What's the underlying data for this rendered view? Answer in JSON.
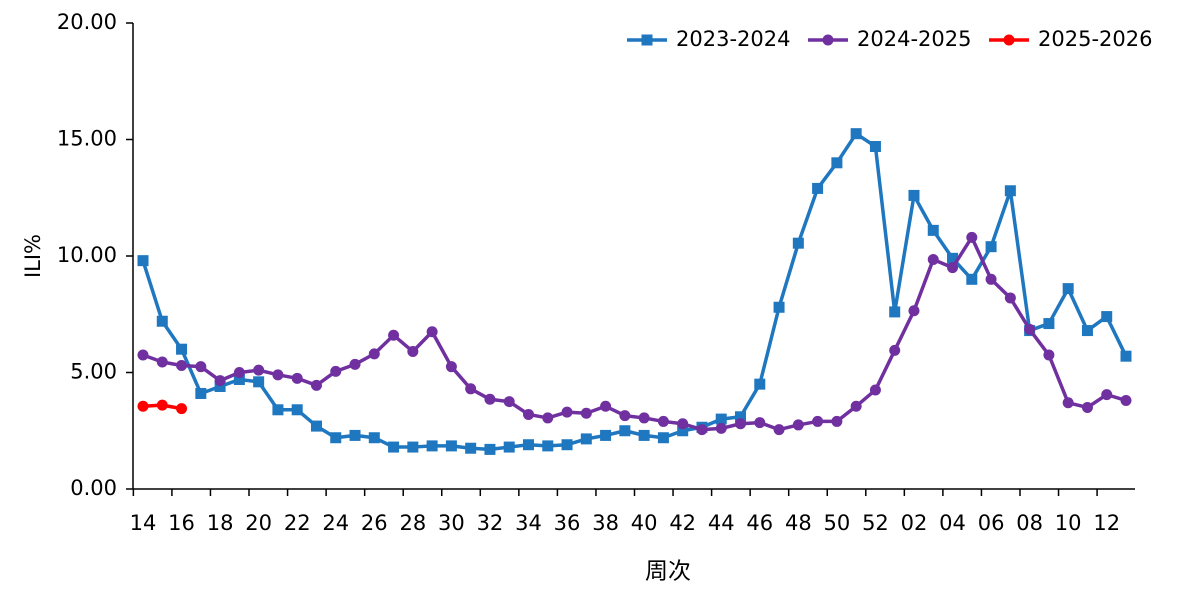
{
  "chart_data": {
    "type": "line",
    "x_label": "周次",
    "y_label": "ILI%",
    "categories": [
      "14",
      null,
      "16",
      null,
      "18",
      null,
      "20",
      null,
      "22",
      null,
      "24",
      null,
      "26",
      null,
      "28",
      null,
      "30",
      null,
      "32",
      null,
      "34",
      null,
      "36",
      null,
      "38",
      null,
      "40",
      null,
      "42",
      null,
      "44",
      null,
      "46",
      null,
      "48",
      null,
      "50",
      null,
      "52",
      null,
      "02",
      null,
      "04",
      null,
      "06",
      null,
      "08",
      null,
      "10",
      null,
      "12",
      null
    ],
    "series": [
      {
        "name": "2023-2024",
        "color": "#1f77c0",
        "marker": "square",
        "values": [
          9.8,
          7.2,
          6.0,
          4.1,
          4.4,
          4.7,
          4.6,
          3.4,
          3.4,
          2.7,
          2.2,
          2.3,
          2.2,
          1.8,
          1.8,
          1.85,
          1.85,
          1.75,
          1.7,
          1.8,
          1.9,
          1.85,
          1.9,
          2.15,
          2.3,
          2.5,
          2.3,
          2.2,
          2.5,
          2.65,
          3.0,
          3.1,
          4.5,
          7.8,
          10.55,
          12.9,
          14.0,
          15.25,
          14.7,
          7.6,
          12.6,
          11.1,
          9.9,
          9.0,
          10.4,
          12.8,
          6.8,
          7.1,
          8.6,
          6.8,
          7.4,
          5.7
        ]
      },
      {
        "name": "2024-2025",
        "color": "#7030a0",
        "marker": "circle",
        "values": [
          5.75,
          5.45,
          5.3,
          5.25,
          4.65,
          5.0,
          5.1,
          4.9,
          4.75,
          4.45,
          5.05,
          5.35,
          5.8,
          6.6,
          5.9,
          6.75,
          5.25,
          4.3,
          3.85,
          3.75,
          3.2,
          3.05,
          3.3,
          3.25,
          3.55,
          3.15,
          3.05,
          2.9,
          2.8,
          2.55,
          2.6,
          2.8,
          2.85,
          2.55,
          2.75,
          2.9,
          2.9,
          3.55,
          4.25,
          5.95,
          7.65,
          9.85,
          9.5,
          10.8,
          9.0,
          8.2,
          6.85,
          5.75,
          3.7,
          3.5,
          4.05,
          3.8
        ]
      },
      {
        "name": "2025-2026",
        "color": "#ff0000",
        "marker": "circle",
        "values": [
          3.55,
          3.6,
          3.45,
          null,
          null,
          null,
          null,
          null,
          null,
          null,
          null,
          null,
          null,
          null,
          null,
          null,
          null,
          null,
          null,
          null,
          null,
          null,
          null,
          null,
          null,
          null,
          null,
          null,
          null,
          null,
          null,
          null,
          null,
          null,
          null,
          null,
          null,
          null,
          null,
          null,
          null,
          null,
          null,
          null,
          null,
          null,
          null,
          null,
          null,
          null,
          null,
          null
        ]
      }
    ],
    "ylim": [
      0,
      20
    ],
    "yticks": [
      {
        "value": 0,
        "label": "0.00"
      },
      {
        "value": 5,
        "label": "5.00"
      },
      {
        "value": 10,
        "label": "10.00"
      },
      {
        "value": 15,
        "label": "15.00"
      },
      {
        "value": 20,
        "label": "20.00"
      }
    ],
    "legend": "top-right"
  }
}
